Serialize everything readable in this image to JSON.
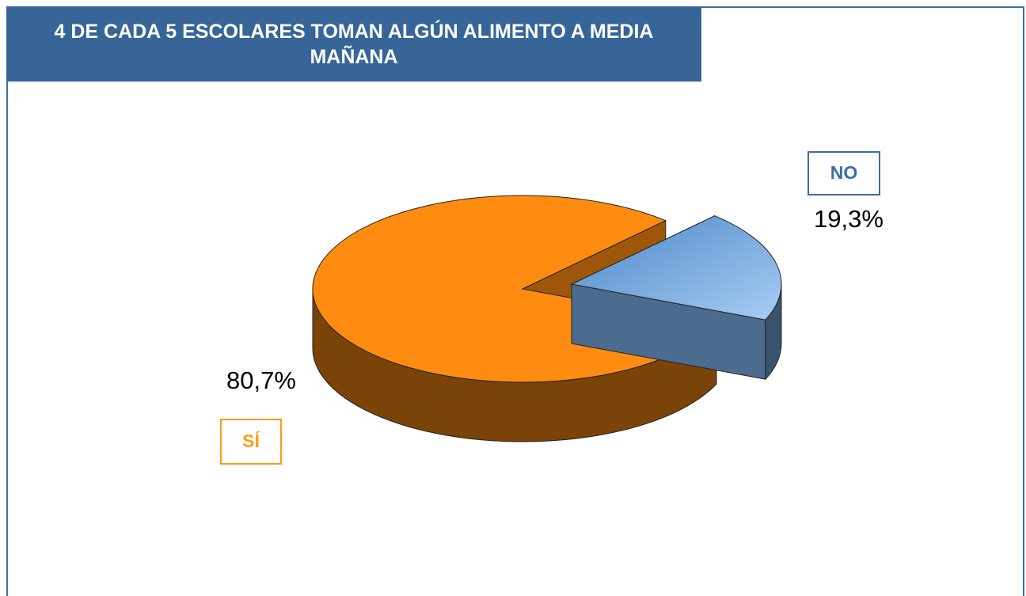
{
  "chart_data": {
    "type": "pie",
    "title": "4 DE CADA 5 ESCOLARES TOMAN ALGÚN ALIMENTO A MEDIA MAÑANA",
    "categories": [
      "NO",
      "SÍ"
    ],
    "values": [
      19.3,
      80.7
    ],
    "value_labels": [
      "19,3%",
      "80,7%"
    ],
    "colors": [
      "#7aaee6",
      "#ff8c10"
    ]
  }
}
